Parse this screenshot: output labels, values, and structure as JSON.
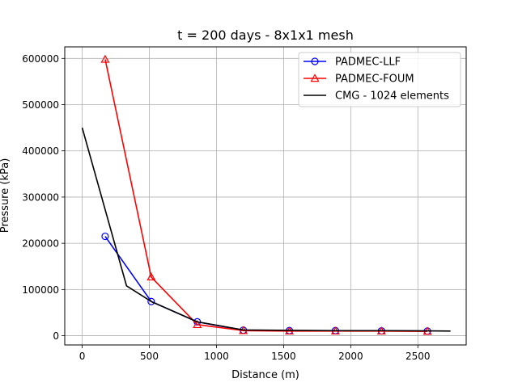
{
  "chart_data": {
    "type": "line",
    "title": "t = 200 days - 8x1x1 mesh",
    "xlabel": "Distance (m)",
    "ylabel": "Pressure (kPa)",
    "xlim": [
      -130,
      2860
    ],
    "ylim": [
      -20000,
      625000
    ],
    "xticks": [
      0,
      500,
      1000,
      1500,
      2000,
      2500
    ],
    "xtick_labels": [
      "0",
      "500",
      "1000",
      "1500",
      "2000",
      "2500"
    ],
    "yticks": [
      0,
      100000,
      200000,
      300000,
      400000,
      500000,
      600000
    ],
    "ytick_labels": [
      "0",
      "100000",
      "200000",
      "300000",
      "400000",
      "500000",
      "600000"
    ],
    "grid": true,
    "legend_position": "top-right",
    "series": [
      {
        "name": "PADMEC-LLF",
        "color": "#0000ff",
        "marker": "circle",
        "x": [
          171,
          514,
          857,
          1200,
          1543,
          1886,
          2229,
          2571
        ],
        "y": [
          215000,
          74000,
          30000,
          12000,
          11000,
          11000,
          10500,
          10000
        ]
      },
      {
        "name": "PADMEC-FOUM",
        "color": "#ff0000",
        "marker": "triangle",
        "x": [
          171,
          514,
          857,
          1200,
          1543,
          1886,
          2229,
          2571
        ],
        "y": [
          598000,
          127000,
          24000,
          11000,
          10000,
          10000,
          10000,
          9500
        ]
      },
      {
        "name": "CMG - 1024 elements",
        "color": "#000000",
        "marker": "none",
        "x": [
          0,
          330,
          514,
          857,
          1200,
          1543,
          1886,
          2229,
          2571,
          2743
        ],
        "y": [
          450000,
          108000,
          74000,
          30000,
          12500,
          11500,
          11000,
          11000,
          10500,
          10000
        ]
      }
    ]
  }
}
